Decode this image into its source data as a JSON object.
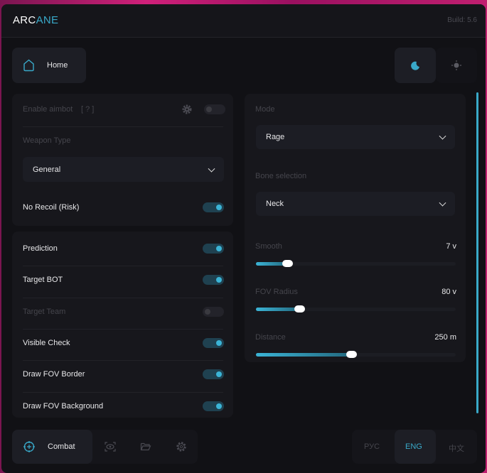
{
  "header": {
    "logo_part1": "ARC",
    "logo_part2": "ANE",
    "build": "Build: 5.6"
  },
  "nav": {
    "home_label": "Home",
    "theme": {
      "active": "dark"
    }
  },
  "aim_panel": {
    "enable_aimbot": {
      "label": "Enable aimbot",
      "help": "[ ? ]",
      "enabled": false
    },
    "weapon_type": {
      "label": "Weapon Type",
      "value": "General"
    },
    "no_recoil": {
      "label": "No Recoil (Risk)",
      "enabled": true
    }
  },
  "options_panel": {
    "items": [
      {
        "label": "Prediction",
        "enabled": true
      },
      {
        "label": "Target BOT",
        "enabled": true
      },
      {
        "label": "Target Team",
        "enabled": false
      },
      {
        "label": "Visible Check",
        "enabled": true
      },
      {
        "label": "Draw FOV Border",
        "enabled": true
      },
      {
        "label": "Draw FOV Background",
        "enabled": true
      }
    ]
  },
  "settings_panel": {
    "mode": {
      "label": "Mode",
      "value": "Rage"
    },
    "bone": {
      "label": "Bone selection",
      "value": "Neck"
    },
    "sliders": [
      {
        "label": "Smooth",
        "value": "7 v",
        "fraction": 0.16
      },
      {
        "label": "FOV Radius",
        "value": "80 v",
        "fraction": 0.22
      },
      {
        "label": "Distance",
        "value": "250 m",
        "fraction": 0.48
      }
    ]
  },
  "footer": {
    "tabs": [
      {
        "label": "Combat",
        "icon": "crosshair-icon",
        "active": true
      },
      {
        "icon": "eye-icon"
      },
      {
        "icon": "folder-icon"
      },
      {
        "icon": "gear-icon"
      }
    ],
    "languages": [
      "РУС",
      "ENG",
      "中文"
    ],
    "active_language": "ENG"
  },
  "colors": {
    "accent": "#39a9c9",
    "background": "#111115"
  }
}
